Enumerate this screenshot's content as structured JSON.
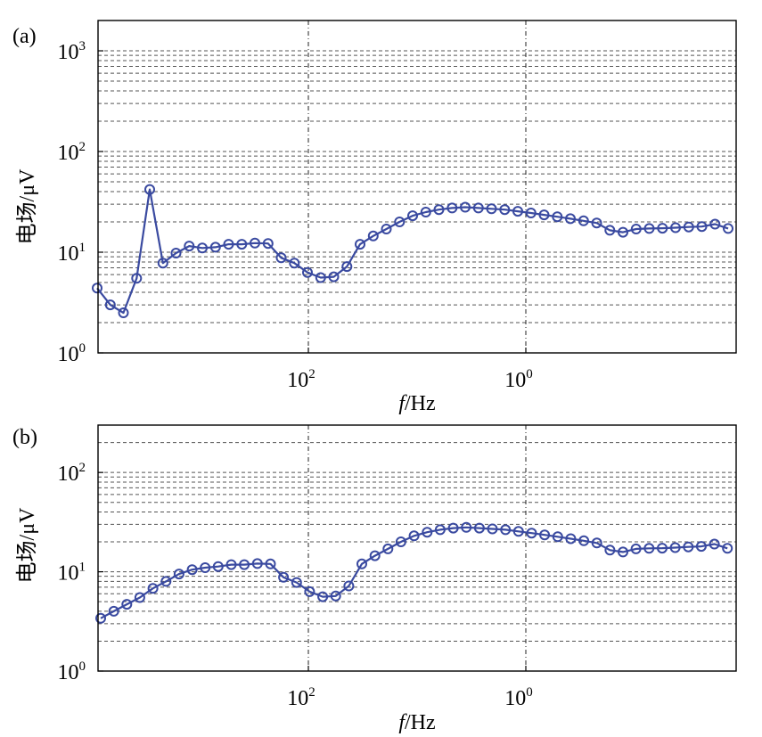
{
  "colors": {
    "series": "#3a4aa0",
    "frame": "#000000",
    "grid": "#555555",
    "background": "#ffffff"
  },
  "chart_data": [
    {
      "panel_label": "(a)",
      "type": "line",
      "marker": "open-circle",
      "y_scale": "log",
      "y_ticks": [
        {
          "base": "10",
          "exp": "0"
        },
        {
          "base": "10",
          "exp": "1"
        },
        {
          "base": "10",
          "exp": "2"
        },
        {
          "base": "10",
          "exp": "3"
        }
      ],
      "x_ticks": [
        {
          "base": "10",
          "exp": "2"
        },
        {
          "base": "10",
          "exp": "0"
        }
      ],
      "xlabel_italic": "f",
      "xlabel_rest": "/Hz",
      "ylabel": "电场/μV",
      "ylim": [
        1,
        2000
      ],
      "grid": "dashed horizontal minor lines at 2–10 per decade; dash-dot vertical lines at the two labelled x ticks",
      "x": [
        1,
        2,
        3,
        4,
        5,
        6,
        7,
        8,
        9,
        10,
        11,
        12,
        13,
        14,
        15,
        16,
        17,
        18,
        19,
        20,
        21,
        22,
        23,
        24,
        25,
        26,
        27,
        28,
        29,
        30,
        31,
        32,
        33,
        34,
        35,
        36,
        37,
        38,
        39,
        40,
        41,
        42,
        43,
        44,
        45,
        46,
        47,
        48,
        49
      ],
      "values": [
        4.4,
        3.0,
        2.5,
        5.5,
        42,
        7.8,
        9.8,
        11.5,
        11.0,
        11.2,
        12.0,
        12.0,
        12.3,
        12.2,
        8.8,
        7.8,
        6.3,
        5.6,
        5.7,
        7.2,
        12.0,
        14.5,
        17.0,
        20.0,
        23.0,
        25.0,
        26.5,
        27.5,
        28.0,
        27.5,
        27.0,
        26.5,
        25.5,
        24.5,
        23.5,
        22.5,
        21.5,
        20.5,
        19.5,
        16.5,
        15.8,
        17.0,
        17.2,
        17.3,
        17.5,
        17.8,
        18.0,
        19.0,
        17.2
      ]
    },
    {
      "panel_label": "(b)",
      "type": "line",
      "marker": "open-circle",
      "y_scale": "log",
      "y_ticks": [
        {
          "base": "10",
          "exp": "0"
        },
        {
          "base": "10",
          "exp": "1"
        },
        {
          "base": "10",
          "exp": "2"
        }
      ],
      "x_ticks": [
        {
          "base": "10",
          "exp": "2"
        },
        {
          "base": "10",
          "exp": "0"
        }
      ],
      "xlabel_italic": "f",
      "xlabel_rest": "/Hz",
      "ylabel": "电场/μV",
      "ylim": [
        1,
        300
      ],
      "grid": "dashed horizontal minor lines at 2–10 per decade; dash-dot vertical lines at the two labelled x ticks",
      "x": [
        1,
        2,
        3,
        4,
        5,
        6,
        7,
        8,
        9,
        10,
        11,
        12,
        13,
        14,
        15,
        16,
        17,
        18,
        19,
        20,
        21,
        22,
        23,
        24,
        25,
        26,
        27,
        28,
        29,
        30,
        31,
        32,
        33,
        34,
        35,
        36,
        37,
        38,
        39,
        40,
        41,
        42,
        43,
        44,
        45,
        46,
        47,
        48,
        49
      ],
      "values": [
        3.4,
        4.0,
        4.7,
        5.5,
        6.8,
        8.0,
        9.5,
        10.5,
        11.0,
        11.3,
        11.8,
        11.8,
        12.1,
        12.0,
        8.8,
        7.8,
        6.3,
        5.6,
        5.7,
        7.2,
        12.0,
        14.5,
        17.0,
        20.0,
        23.0,
        25.0,
        26.5,
        27.5,
        28.0,
        27.5,
        27.0,
        26.5,
        25.5,
        24.5,
        23.5,
        22.5,
        21.5,
        20.5,
        19.5,
        16.5,
        15.8,
        17.0,
        17.2,
        17.3,
        17.5,
        17.8,
        18.0,
        19.0,
        17.2
      ]
    }
  ]
}
